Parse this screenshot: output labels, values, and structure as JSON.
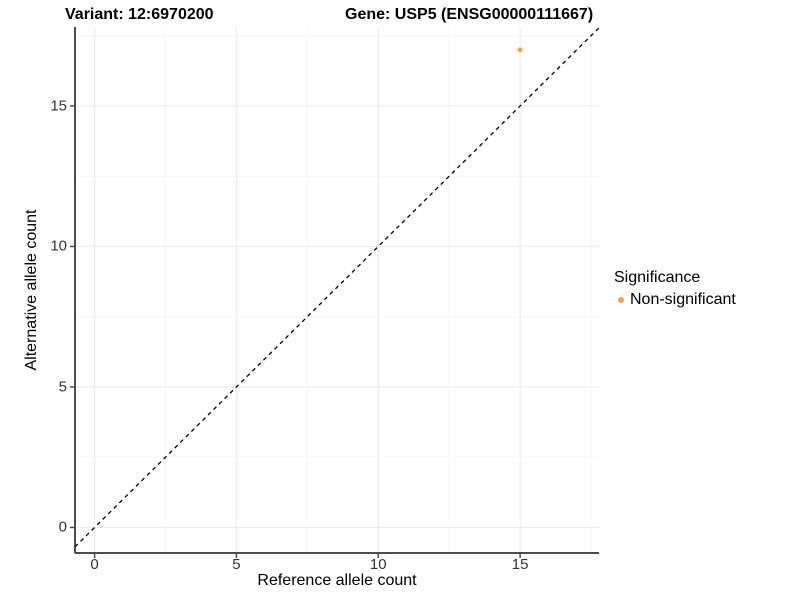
{
  "titles": {
    "variant": "Variant: 12:6970200",
    "gene": "Gene: USP5 (ENSG00000111667)"
  },
  "axes": {
    "x_label": "Reference allele count",
    "y_label": "Alternative allele count"
  },
  "legend": {
    "title": "Significance",
    "items": [
      {
        "label": "Non-significant",
        "color": "#F9A242"
      }
    ]
  },
  "chart_data": {
    "type": "scatter",
    "title": "Variant: 12:6970200 — Gene: USP5 (ENSG00000111667)",
    "xlabel": "Reference allele count",
    "ylabel": "Alternative allele count",
    "xlim": [
      -0.69,
      17.78
    ],
    "ylim": [
      -0.91,
      17.81
    ],
    "x_ticks": [
      0,
      5,
      10,
      15
    ],
    "y_ticks": [
      0,
      5,
      10,
      15
    ],
    "x_minor_ticks": [
      2.5,
      7.5,
      12.5,
      17.5
    ],
    "y_minor_ticks": [
      2.5,
      7.5,
      12.5,
      17.5
    ],
    "grid": true,
    "legend_position": "right",
    "series": [
      {
        "name": "Non-significant",
        "color": "#F9A242",
        "points": [
          {
            "x": 15,
            "y": 17
          }
        ]
      }
    ],
    "reference_line": {
      "slope": 1,
      "intercept": 0,
      "style": "dashed",
      "color": "#000000"
    },
    "style_colors": {
      "grid_major": "#ECECEC",
      "grid_minor": "#F6F6F6",
      "axis_line": "#4D4D4D",
      "tick_mark": "#4D4D4D"
    }
  }
}
